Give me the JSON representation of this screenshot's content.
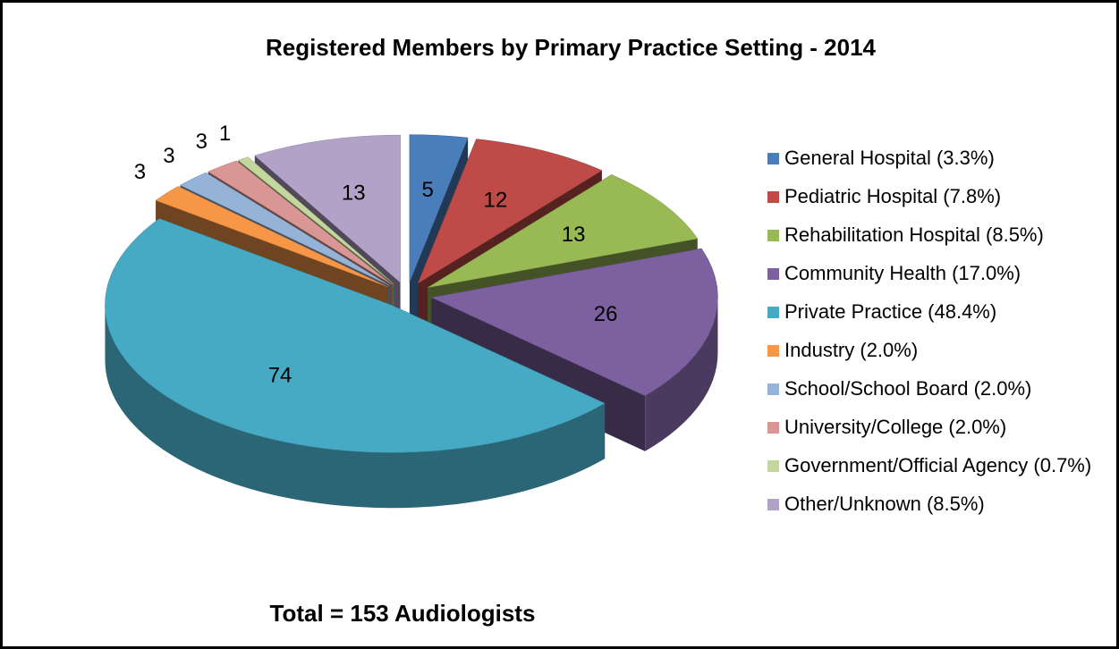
{
  "chart_data": {
    "type": "pie",
    "title": "Registered Members by Primary Practice Setting - 2014",
    "annotation": "Total = 153 Audiologists",
    "categories": [
      "General Hospital (3.3%)",
      "Pediatric Hospital (7.8%)",
      "Rehabilitation Hospital (8.5%)",
      "Community Health (17.0%)",
      "Private Practice (48.4%)",
      "Industry (2.0%)",
      "School/School Board (2.0%)",
      "University/College (2.0%)",
      "Government/Official Agency (0.7%)",
      "Other/Unknown (8.5%)"
    ],
    "values": [
      5,
      12,
      13,
      26,
      74,
      3,
      3,
      3,
      1,
      13
    ],
    "colors": [
      "#4a7ebb",
      "#be4b48",
      "#98b954",
      "#7d60a0",
      "#46aac5",
      "#f79646",
      "#95b3d7",
      "#d99694",
      "#c3d69b",
      "#b3a2c7"
    ],
    "legend": "right"
  }
}
